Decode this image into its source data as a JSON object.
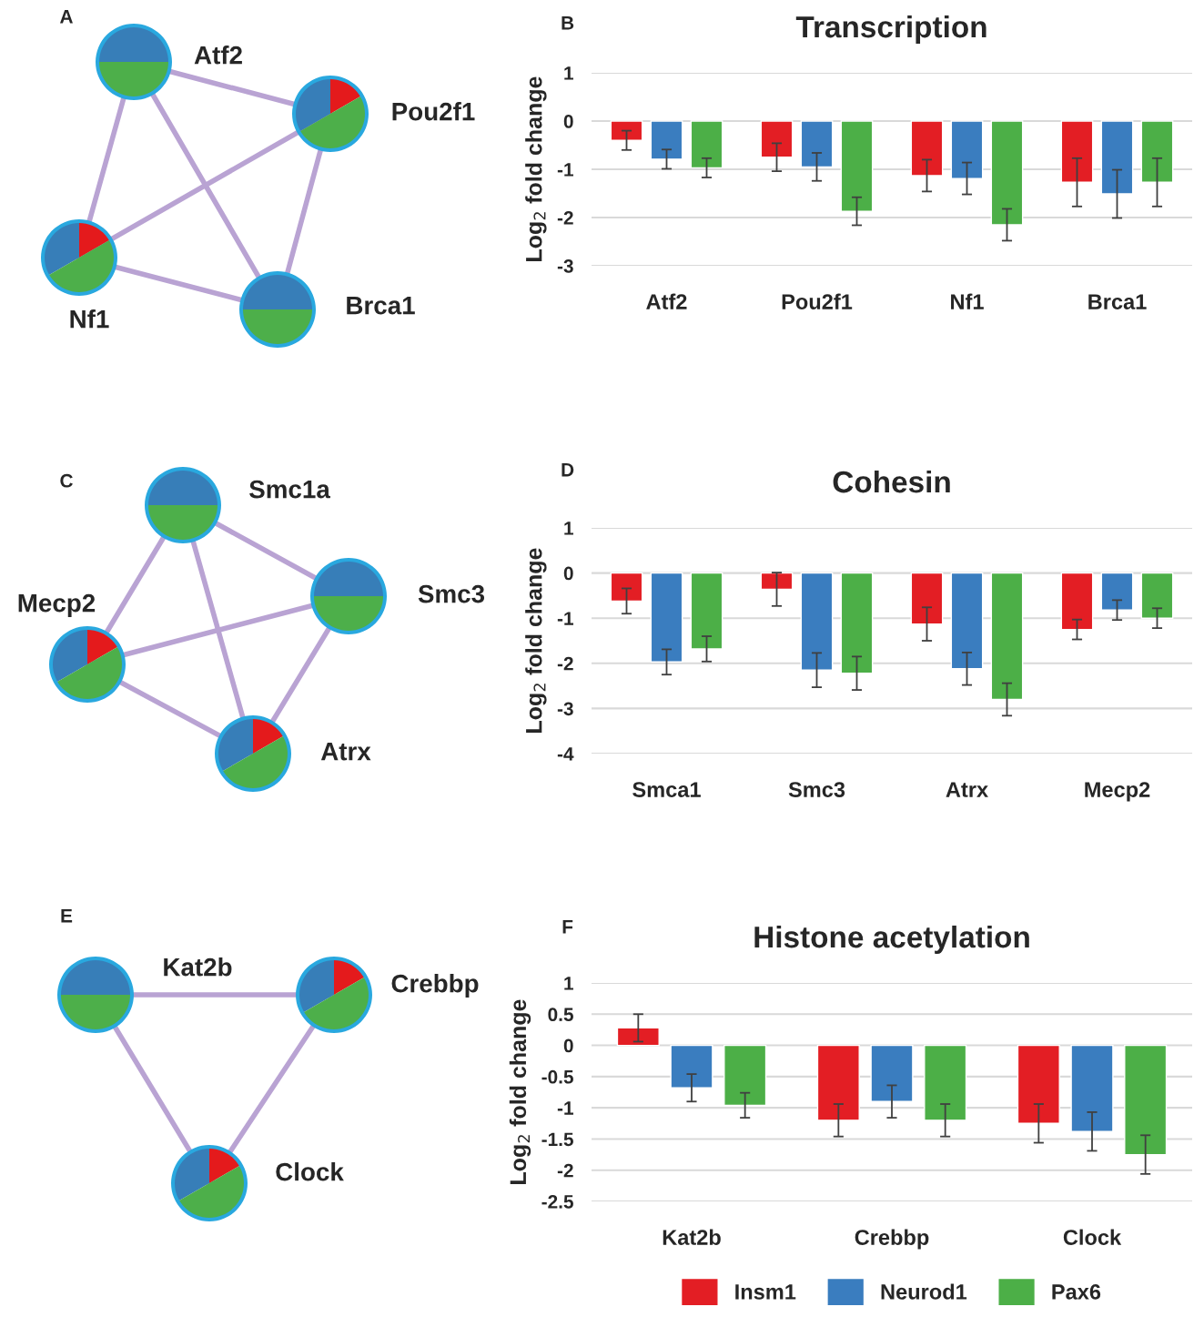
{
  "chart_data": [
    {
      "type": "other",
      "annotations": [
        "A",
        "Atf2",
        "Pou2f1",
        "Nf1",
        "Brca1"
      ]
    },
    {
      "type": "bar",
      "title": "Transcription",
      "ylabel": "Log$_{2}$ fold change",
      "annotations": [
        "B"
      ],
      "categories": [
        "Atf2",
        "Pou2f1",
        "Nf1",
        "Brca1"
      ],
      "ylim": [
        -3,
        1
      ],
      "yticks": [
        1,
        0,
        -1,
        -2,
        -3
      ],
      "grid": "y",
      "series": [
        {
          "color": "#e31e24",
          "values": [
            -0.4,
            -0.75,
            -1.13,
            -1.27
          ],
          "errors": [
            0.2,
            0.29,
            0.33,
            0.5
          ]
        },
        {
          "color": "#3a7dbf",
          "values": [
            -0.79,
            -0.95,
            -1.19,
            -1.51
          ],
          "errors": [
            0.2,
            0.29,
            0.33,
            0.5
          ]
        },
        {
          "color": "#4caf47",
          "values": [
            -0.97,
            -1.87,
            -2.15,
            -1.27
          ],
          "errors": [
            0.2,
            0.29,
            0.33,
            0.5
          ]
        }
      ]
    },
    {
      "type": "other",
      "annotations": [
        "C",
        "Smc1a",
        "Smc3",
        "Mecp2",
        "Atrx"
      ]
    },
    {
      "type": "bar",
      "title": "Cohesin",
      "ylabel": "Log$_{2}$ fold change",
      "annotations": [
        "D"
      ],
      "categories": [
        "Smca1",
        "Smc3",
        "Atrx",
        "Mecp2"
      ],
      "ylim": [
        -4,
        1
      ],
      "yticks": [
        1,
        0,
        -1,
        -2,
        -3,
        -4
      ],
      "grid": "y",
      "series": [
        {
          "color": "#e31e24",
          "values": [
            -0.62,
            -0.36,
            -1.13,
            -1.25
          ],
          "errors": [
            0.28,
            0.37,
            0.37,
            0.22
          ]
        },
        {
          "color": "#3a7dbf",
          "values": [
            -1.97,
            -2.15,
            -2.12,
            -0.82
          ],
          "errors": [
            0.28,
            0.38,
            0.36,
            0.22
          ]
        },
        {
          "color": "#4caf47",
          "values": [
            -1.68,
            -2.22,
            -2.8,
            -1.0
          ],
          "errors": [
            0.28,
            0.37,
            0.36,
            0.22
          ]
        }
      ]
    },
    {
      "type": "other",
      "annotations": [
        "E",
        "Kat2b",
        "Crebbp",
        "Clock"
      ]
    },
    {
      "type": "bar",
      "title": "Histone acetylation",
      "ylabel": "Log$_{2}$ fold change",
      "annotations": [
        "F"
      ],
      "categories": [
        "Kat2b",
        "Crebbp",
        "Clock"
      ],
      "ylim": [
        -2.5,
        1
      ],
      "yticks": [
        1,
        0.5,
        0,
        -0.5,
        -1,
        -1.5,
        -2,
        -2.5
      ],
      "grid": "y",
      "legend": "bottom",
      "series": [
        {
          "name": "Insm1",
          "color": "#e31e24",
          "values": [
            0.28,
            -1.2,
            -1.25
          ],
          "errors": [
            0.22,
            0.26,
            0.31
          ]
        },
        {
          "name": "Neurod1",
          "color": "#3a7dbf",
          "values": [
            -0.68,
            -0.9,
            -1.38
          ],
          "errors": [
            0.22,
            0.26,
            0.31
          ]
        },
        {
          "name": "Pax6",
          "color": "#4caf47",
          "values": [
            -0.96,
            -1.2,
            -1.75
          ],
          "errors": [
            0.2,
            0.26,
            0.31
          ]
        }
      ]
    }
  ]
}
